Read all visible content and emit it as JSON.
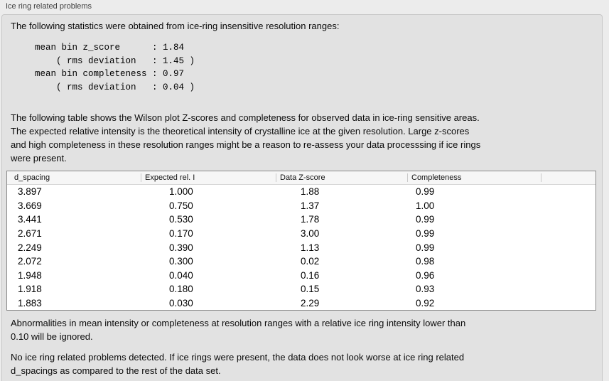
{
  "panel": {
    "title": "Ice ring related problems"
  },
  "texts": {
    "intro": "The following statistics were obtained from ice-ring insensitive resolution ranges:",
    "stats_block": "mean bin z_score      : 1.84\n    ( rms deviation   : 1.45 )\nmean bin completeness : 0.97\n    ( rms deviation   : 0.04 )",
    "description": "The following table shows the Wilson plot Z-scores and completeness for observed data in ice-ring sensitive areas.\nThe expected relative intensity is the theoretical intensity of crystalline ice at the given resolution. Large z-scores\nand high completeness in these resolution ranges might be a reason to re-assess your data processsing if ice rings\nwere present.",
    "note": "Abnormalities in mean intensity or completeness at resolution ranges with a relative ice ring intensity lower than\n0.10 will be ignored.",
    "conclusion": "No ice ring related problems detected. If ice rings were present, the data does not look worse at ice ring related\nd_spacings as compared to the rest of the data set."
  },
  "stats": {
    "mean_bin_z_score": "1.84",
    "z_score_rms_deviation": "1.45",
    "mean_bin_completeness": "0.97",
    "completeness_rms_deviation": "0.04"
  },
  "table": {
    "columns": [
      "d_spacing",
      "Expected rel. I",
      "Data Z-score",
      "Completeness"
    ],
    "rows": [
      [
        "3.897",
        "1.000",
        "1.88",
        "0.99"
      ],
      [
        "3.669",
        "0.750",
        "1.37",
        "1.00"
      ],
      [
        "3.441",
        "0.530",
        "1.78",
        "0.99"
      ],
      [
        "2.671",
        "0.170",
        "3.00",
        "0.99"
      ],
      [
        "2.249",
        "0.390",
        "1.13",
        "0.99"
      ],
      [
        "2.072",
        "0.300",
        "0.02",
        "0.98"
      ],
      [
        "1.948",
        "0.040",
        "0.16",
        "0.96"
      ],
      [
        "1.918",
        "0.180",
        "0.15",
        "0.93"
      ],
      [
        "1.883",
        "0.030",
        "2.29",
        "0.92"
      ]
    ]
  },
  "colors": {
    "page_background": "#ececec",
    "panel_background": "#e2e2e2",
    "panel_border": "#c7c7c7",
    "table_border": "#8a8a8a",
    "table_header_background": "#f6f6f6"
  }
}
